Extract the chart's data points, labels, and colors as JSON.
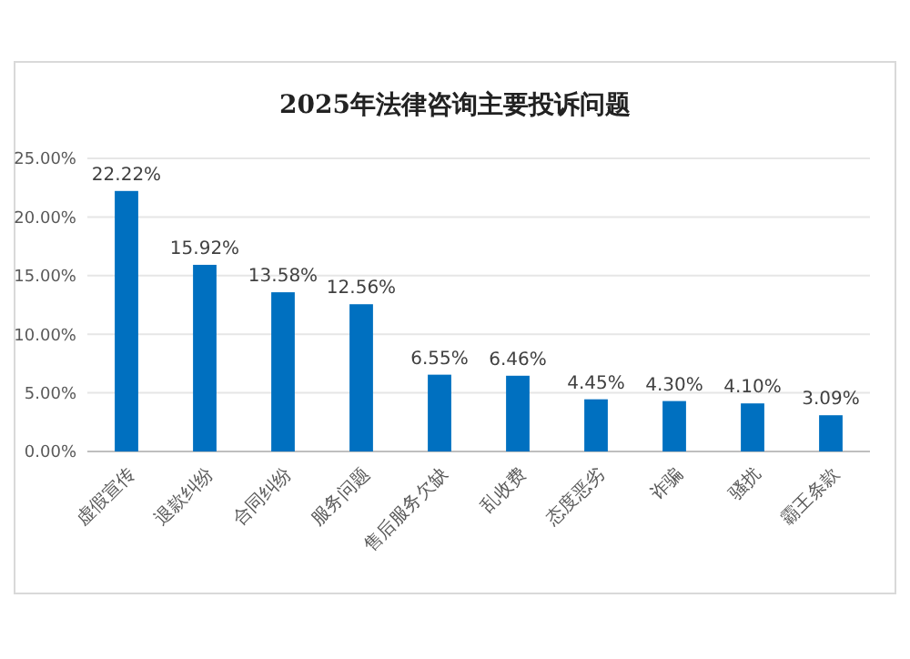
{
  "chart_data": {
    "type": "bar",
    "title": "2025年法律咨询主要投诉问题",
    "categories": [
      "虚假宣传",
      "退款纠纷",
      "合同纠纷",
      "服务问题",
      "售后服务欠缺",
      "乱收费",
      "态度恶劣",
      "诈骗",
      "骚扰",
      "霸王条款"
    ],
    "values": [
      22.22,
      15.92,
      13.58,
      12.56,
      6.55,
      6.46,
      4.45,
      4.3,
      4.1,
      3.09
    ],
    "value_labels": [
      "22.22%",
      "15.92%",
      "13.58%",
      "12.56%",
      "6.55%",
      "6.46%",
      "4.45%",
      "4.30%",
      "4.10%",
      "3.09%"
    ],
    "color": "#0070c0",
    "grid": "y",
    "ylim": [
      0,
      25
    ],
    "yticks": [
      {
        "value": 0,
        "label": "0.00%"
      },
      {
        "value": 5,
        "label": "5.00%"
      },
      {
        "value": 10,
        "label": "10.00%"
      },
      {
        "value": 15,
        "label": "15.00%"
      },
      {
        "value": 20,
        "label": "20.00%"
      },
      {
        "value": 25,
        "label": "25.00%"
      }
    ]
  }
}
